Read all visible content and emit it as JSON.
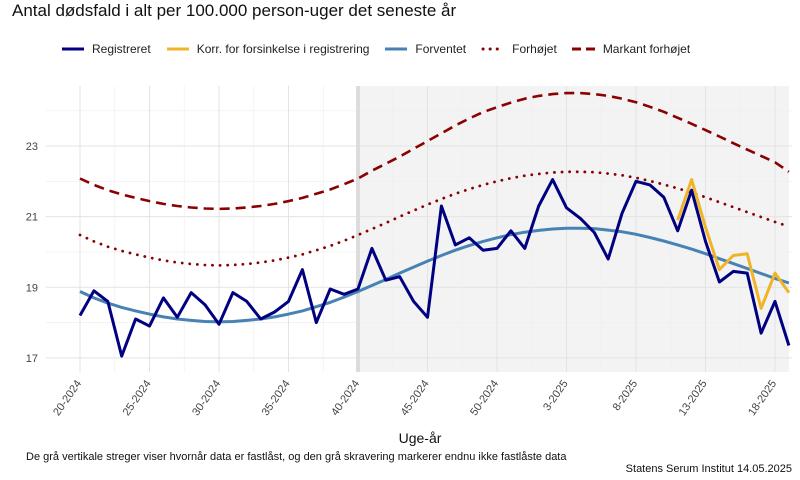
{
  "chart_data": {
    "type": "line",
    "title": "Antal dødsfald i alt per 100.000 person-uger det seneste år",
    "xlabel": "Uge-år",
    "ylabel": "",
    "ylim": [
      16.6,
      24.7
    ],
    "yticks": [
      "17",
      "19",
      "21",
      "23"
    ],
    "weeks": [
      "20-2024",
      "21-2024",
      "22-2024",
      "23-2024",
      "24-2024",
      "25-2024",
      "26-2024",
      "27-2024",
      "28-2024",
      "29-2024",
      "30-2024",
      "31-2024",
      "32-2024",
      "33-2024",
      "34-2024",
      "35-2024",
      "36-2024",
      "37-2024",
      "38-2024",
      "39-2024",
      "40-2024",
      "41-2024",
      "42-2024",
      "43-2024",
      "44-2024",
      "45-2024",
      "46-2024",
      "47-2024",
      "48-2024",
      "49-2024",
      "50-2024",
      "51-2024",
      "52-2024",
      "1-2025",
      "2-2025",
      "3-2025",
      "4-2025",
      "5-2025",
      "6-2025",
      "7-2025",
      "8-2025",
      "9-2025",
      "10-2025",
      "11-2025",
      "12-2025",
      "13-2025",
      "14-2025",
      "15-2025",
      "16-2025",
      "17-2025",
      "18-2025",
      "19-2025"
    ],
    "x_tick_labels": [
      "20-2024",
      "25-2024",
      "30-2024",
      "35-2024",
      "40-2024",
      "45-2024",
      "50-2024",
      "3-2025",
      "8-2025",
      "13-2025",
      "18-2025"
    ],
    "shaded_from_week": "40-2024",
    "vertical_line_at_week": "40-2024",
    "series": [
      {
        "name": "Registreret",
        "color": "#000080",
        "style": "solid",
        "values": [
          18.2,
          18.9,
          18.6,
          17.05,
          18.1,
          17.9,
          18.7,
          18.15,
          18.85,
          18.5,
          17.95,
          18.85,
          18.6,
          18.1,
          18.3,
          18.6,
          19.5,
          18.0,
          18.95,
          18.8,
          18.95,
          20.1,
          19.2,
          19.3,
          18.6,
          18.15,
          21.3,
          20.2,
          20.4,
          20.05,
          20.1,
          20.6,
          20.1,
          21.3,
          22.05,
          21.25,
          20.95,
          20.55,
          19.8,
          21.1,
          22.0,
          21.9,
          21.55,
          20.6,
          21.75,
          20.3,
          19.15,
          19.45,
          19.4,
          17.7,
          18.6,
          17.35
        ]
      },
      {
        "name": "Korr. for forsinkelse i registrering",
        "color": "#F0B429",
        "style": "solid",
        "values": [
          null,
          null,
          null,
          null,
          null,
          null,
          null,
          null,
          null,
          null,
          null,
          null,
          null,
          null,
          null,
          null,
          null,
          null,
          null,
          null,
          null,
          null,
          null,
          null,
          null,
          null,
          null,
          null,
          null,
          null,
          null,
          null,
          null,
          null,
          null,
          null,
          null,
          null,
          null,
          null,
          null,
          null,
          null,
          20.9,
          22.05,
          20.7,
          19.5,
          19.9,
          19.95,
          18.4,
          19.4,
          18.85
        ]
      },
      {
        "name": "Forventet",
        "color": "#4682B4",
        "style": "solid",
        "values": [
          18.88,
          18.7,
          18.55,
          18.43,
          18.33,
          18.24,
          18.16,
          18.1,
          18.06,
          18.03,
          18.02,
          18.03,
          18.06,
          18.1,
          18.16,
          18.24,
          18.33,
          18.45,
          18.57,
          18.72,
          18.88,
          19.05,
          19.22,
          19.4,
          19.57,
          19.74,
          19.9,
          20.05,
          20.18,
          20.3,
          20.4,
          20.49,
          20.56,
          20.61,
          20.65,
          20.67,
          20.67,
          20.66,
          20.62,
          20.57,
          20.5,
          20.41,
          20.31,
          20.2,
          20.08,
          19.95,
          19.81,
          19.67,
          19.53,
          19.39,
          19.25,
          19.12
        ]
      },
      {
        "name": "Forhøjet",
        "color": "#8B0000",
        "style": "dotted",
        "values": [
          20.48,
          20.3,
          20.15,
          20.03,
          19.93,
          19.84,
          19.76,
          19.7,
          19.66,
          19.63,
          19.62,
          19.63,
          19.66,
          19.7,
          19.76,
          19.84,
          19.93,
          20.05,
          20.17,
          20.32,
          20.48,
          20.65,
          20.82,
          21.0,
          21.17,
          21.34,
          21.5,
          21.65,
          21.78,
          21.9,
          22.0,
          22.09,
          22.16,
          22.21,
          22.25,
          22.27,
          22.27,
          22.26,
          22.22,
          22.17,
          22.1,
          22.01,
          21.91,
          21.8,
          21.68,
          21.55,
          21.41,
          21.27,
          21.13,
          20.99,
          20.85,
          20.72
        ]
      },
      {
        "name": "Markant forhøjet",
        "color": "#8B0000",
        "style": "dashed",
        "values": [
          22.08,
          21.9,
          21.75,
          21.63,
          21.53,
          21.44,
          21.36,
          21.3,
          21.26,
          21.23,
          21.22,
          21.23,
          21.26,
          21.3,
          21.36,
          21.44,
          21.53,
          21.65,
          21.77,
          21.92,
          22.08,
          22.3,
          22.5,
          22.7,
          22.92,
          23.14,
          23.36,
          23.58,
          23.78,
          23.96,
          24.1,
          24.23,
          24.34,
          24.42,
          24.47,
          24.5,
          24.5,
          24.47,
          24.42,
          24.34,
          24.24,
          24.11,
          23.97,
          23.8,
          23.63,
          23.45,
          23.27,
          23.08,
          22.9,
          22.72,
          22.54,
          22.27
        ]
      }
    ]
  },
  "caption": "De grå vertikale streger viser hvornår data er fastlåst, og den grå skravering markerer endnu ikke fastlåste data",
  "source": "Statens Serum Institut  14.05.2025"
}
